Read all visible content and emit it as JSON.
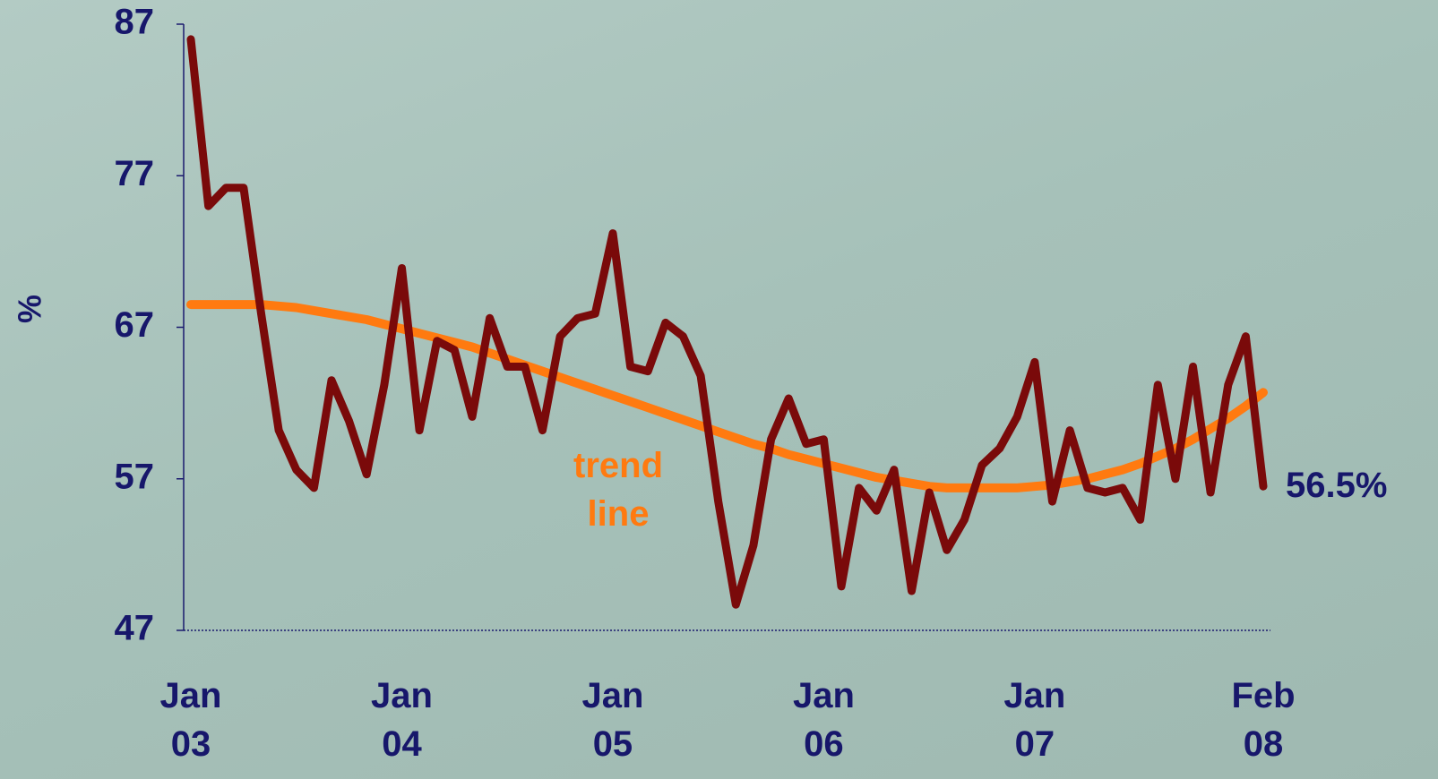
{
  "chart_data": {
    "type": "line",
    "ylabel": "%",
    "categories": [
      "Jan\n03",
      null,
      null,
      null,
      null,
      null,
      null,
      null,
      null,
      null,
      null,
      null,
      "Jan\n04",
      null,
      null,
      null,
      null,
      null,
      null,
      null,
      null,
      null,
      null,
      null,
      "Jan\n05",
      null,
      null,
      null,
      null,
      null,
      null,
      null,
      null,
      null,
      null,
      null,
      "Jan\n06",
      null,
      null,
      null,
      null,
      null,
      null,
      null,
      null,
      null,
      null,
      null,
      "Jan\n07",
      null,
      null,
      null,
      null,
      null,
      null,
      null,
      null,
      null,
      null,
      null,
      null,
      "Feb\n08"
    ],
    "series": [
      {
        "name": null,
        "color": "#7a0a0a",
        "values": [
          86,
          75,
          76.2,
          76.2,
          67.9,
          60.2,
          57.6,
          56.4,
          63.5,
          60.8,
          57.3,
          63.2,
          70.9,
          60.2,
          66.1,
          65.5,
          61.1,
          67.6,
          64.4,
          64.4,
          60.2,
          66.4,
          67.6,
          67.9,
          73.2,
          64.4,
          64.1,
          67.3,
          66.4,
          63.8,
          55.5,
          48.7,
          52.6,
          59.6,
          62.3,
          59.3,
          59.6,
          49.9,
          56.4,
          54.9,
          57.6,
          49.6,
          56.1,
          52.3,
          54.3,
          57.9,
          59.0,
          61.1,
          64.7,
          55.5,
          60.2,
          56.4,
          56.1,
          56.4,
          54.3,
          63.2,
          57.0,
          64.4,
          56.1,
          63.2,
          66.4,
          56.5
        ]
      },
      {
        "name": null,
        "color": "#ff7a10",
        "values": [
          68.5,
          68.5,
          68.5,
          68.5,
          68.5,
          68.4,
          68.3,
          68.1,
          67.9,
          67.7,
          67.5,
          67.2,
          66.9,
          66.6,
          66.3,
          66.0,
          65.7,
          65.3,
          64.9,
          64.5,
          64.1,
          63.7,
          63.3,
          62.9,
          62.5,
          62.1,
          61.7,
          61.3,
          60.9,
          60.5,
          60.1,
          59.7,
          59.3,
          59.0,
          58.6,
          58.3,
          58.0,
          57.7,
          57.4,
          57.1,
          56.9,
          56.7,
          56.5,
          56.4,
          56.4,
          56.4,
          56.4,
          56.4,
          56.5,
          56.6,
          56.8,
          57.0,
          57.3,
          57.6,
          58.0,
          58.5,
          59.0,
          59.6,
          60.3,
          61.0,
          61.8,
          62.7
        ]
      }
    ],
    "ylim": [
      47,
      87
    ],
    "yticks": [
      47,
      57,
      67,
      77,
      87
    ],
    "annotations": [
      "trend\nline",
      "56.5%"
    ]
  }
}
